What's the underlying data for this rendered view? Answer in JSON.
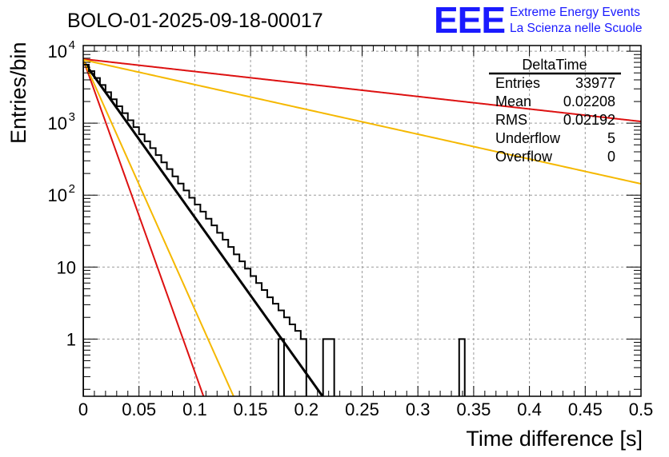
{
  "chart_data": {
    "type": "histogram",
    "title": "BOLO-01-2025-09-18-00017",
    "xlabel": "Time difference [s]",
    "ylabel": "Entries/bin",
    "x_range": [
      0,
      0.5
    ],
    "y_range_log": [
      0.16,
      12000
    ],
    "y_scale": "log",
    "grid": true,
    "x_tick_labels": [
      "0",
      "0.05",
      "0.1",
      "0.15",
      "0.2",
      "0.25",
      "0.3",
      "0.35",
      "0.4",
      "0.45",
      "0.5"
    ],
    "x_tick_values": [
      0,
      0.05,
      0.1,
      0.15,
      0.2,
      0.25,
      0.3,
      0.35,
      0.4,
      0.45,
      0.5
    ],
    "y_tick_labels": [
      {
        "value": 10000,
        "base": "10",
        "exp": "4"
      },
      {
        "value": 1000,
        "base": "10",
        "exp": "3"
      },
      {
        "value": 100,
        "base": "10",
        "exp": "2"
      },
      {
        "value": 10,
        "base": "10",
        "exp": ""
      },
      {
        "value": 1,
        "base": "1",
        "exp": ""
      }
    ],
    "bin_width": 0.005,
    "histogram_counts": [
      6500,
      5300,
      4250,
      3400,
      2700,
      2150,
      1720,
      1380,
      1100,
      880,
      700,
      560,
      450,
      360,
      285,
      230,
      182,
      145,
      116,
      92,
      74,
      59,
      47,
      38,
      30,
      24,
      19,
      15,
      12,
      9.5,
      7.5,
      6,
      4.8,
      3.8,
      3.1,
      2.5,
      2.0,
      1.6,
      1.3,
      1.0
    ],
    "histogram_counts_note": "Reported approximately; visible outline follows the exponential with fluctuations. Isolated single-count bins near 0.22 and 0.34 s.",
    "isolated_bins": [
      {
        "x_low": 0.175,
        "x_high": 0.18,
        "count": 1
      },
      {
        "x_low": 0.215,
        "x_high": 0.225,
        "count": 1
      },
      {
        "x_low": 0.337,
        "x_high": 0.342,
        "count": 1
      }
    ],
    "fits": [
      {
        "name": "data fit",
        "color": "#000000",
        "amplitude": 7300,
        "tau": 0.02
      },
      {
        "name": "red steep",
        "color": "#dd1111",
        "amplitude": 7700,
        "tau": 0.01
      },
      {
        "name": "yellow steep",
        "color": "#f5b800",
        "amplitude": 7700,
        "tau": 0.0125
      },
      {
        "name": "red shallow",
        "color": "#dd1111",
        "amplitude": 7800,
        "tau": 0.25
      },
      {
        "name": "yellow shallow",
        "color": "#f5b800",
        "amplitude": 7600,
        "tau": 0.126
      }
    ],
    "stats_box": {
      "title": "DeltaTime",
      "rows": [
        {
          "label": "Entries",
          "value": "33977"
        },
        {
          "label": "Mean",
          "value": "0.02208"
        },
        {
          "label": "RMS",
          "value": "0.02192"
        },
        {
          "label": "Underflow",
          "value": "5"
        },
        {
          "label": "Overflow",
          "value": "0"
        }
      ]
    },
    "logo": {
      "mark": "EEE",
      "line1": "Extreme Energy Events",
      "line2": "La Scienza nelle Scuole",
      "color": "#1a1aff"
    }
  }
}
